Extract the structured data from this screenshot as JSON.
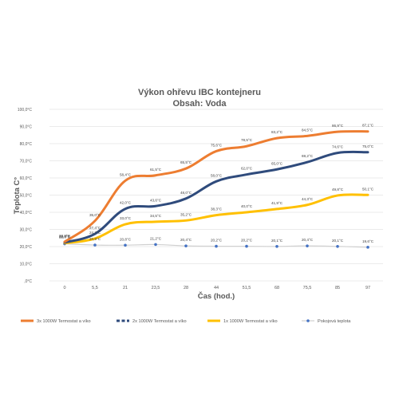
{
  "chart_data": {
    "type": "line",
    "title": "Výkon ohřevu IBC kontejneru",
    "subtitle": "Obsah: Voda",
    "xlabel": "Čas (hod.)",
    "ylabel": "Teplota C°",
    "categories": [
      "0",
      "5,5",
      "21",
      "23,5",
      "28",
      "44",
      "51,5",
      "68",
      "75,5",
      "85",
      "97"
    ],
    "yticks": [
      ",0°C",
      "10,0°C",
      "20,0°C",
      "30,0°C",
      "40,0°C",
      "50,0°C",
      "60,0°C",
      "70,0°C",
      "80,0°C",
      "90,0°C",
      "100,0°C"
    ],
    "ylim": [
      0,
      100
    ],
    "grid": true,
    "legend_position": "bottom",
    "series": [
      {
        "name": "3x 1000W Termostat a víko",
        "color": "#ED7D31",
        "style": "solid",
        "values": [
          22.8,
          35.0,
          58.4,
          61.5,
          65.5,
          75.6,
          78.5,
          83.2,
          84.5,
          86.9,
          87.1
        ],
        "labels": [
          "22,8°C",
          "35,0°C",
          "58,4°C",
          "61,5°C",
          "65,5°C",
          "75,6°C",
          "78,5°C",
          "83,2°C",
          "84,5°C",
          "86,9°C",
          "87,1°C"
        ]
      },
      {
        "name": "2x 1000W Termostat a víko",
        "color": "#2F4B7C",
        "style": "dashed",
        "values": [
          22.4,
          27.4,
          42.0,
          43.6,
          48.0,
          58.0,
          62.0,
          65.0,
          69.2,
          74.6,
          75.0
        ],
        "labels": [
          "22,4°C",
          "27,4°C",
          "42,0°C",
          "43,6°C",
          "48,0°C",
          "58,0°C",
          "62,0°C",
          "65,0°C",
          "69,2°C",
          "74,6°C",
          "75,0°C"
        ]
      },
      {
        "name": "1x 1000W Termostat a víko",
        "color": "#FFC000",
        "style": "solid",
        "values": [
          22.0,
          24.7,
          33.0,
          34.5,
          35.2,
          38.3,
          40.0,
          41.9,
          44.3,
          49.8,
          50.1
        ],
        "labels": [
          "22,0°C",
          "24,7°C",
          "33,0°C",
          "34,5°C",
          "35,2°C",
          "38,3°C",
          "40,0°C",
          "41,9°C",
          "44,3°C",
          "49,8°C",
          "50,1°C"
        ]
      },
      {
        "name": "Pokojová teplota",
        "color": "#4472C4",
        "line_color": "#D0D0D0",
        "style": "dotted-markers",
        "values": [
          21.6,
          20.9,
          20.8,
          21.2,
          20.4,
          20.2,
          20.2,
          20.1,
          20.4,
          20.1,
          19.6
        ],
        "labels": [
          "",
          "20,9°C",
          "20,8°C",
          "21,2°C",
          "20,4°C",
          "20,2°C",
          "20,2°C",
          "20,1°C",
          "20,4°C",
          "20,1°C",
          "19,6°C"
        ]
      }
    ]
  }
}
